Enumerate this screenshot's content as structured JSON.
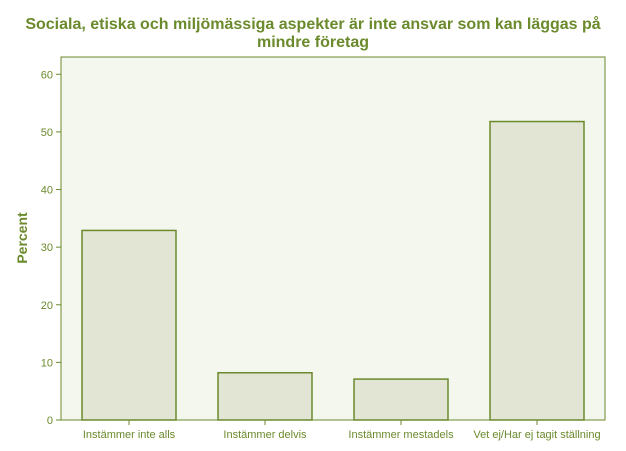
{
  "chart_data": {
    "type": "bar",
    "title_line1": "Sociala, etiska och miljömässiga aspekter är inte ansvar som kan läggas på",
    "title_line2": "mindre företag",
    "xlabel": "",
    "ylabel": "Percent",
    "categories": [
      "Instämmer inte alls",
      "Instämmer delvis",
      "Instämmer mestadels",
      "Vet ej/Har ej tagit ställning"
    ],
    "values": [
      32.9,
      8.2,
      7.1,
      51.8
    ],
    "ylim": [
      0,
      63
    ],
    "yticks": [
      "0",
      "10",
      "20",
      "30",
      "40",
      "50",
      "60"
    ],
    "grid": false,
    "legend": "none",
    "colors": {
      "bar_fill": "#e2e5d3",
      "bar_stroke": "#6b8a2c",
      "plot_bg": "#f4f7ee",
      "axis": "#6b8a2c",
      "text": "#6b8a2c"
    }
  }
}
